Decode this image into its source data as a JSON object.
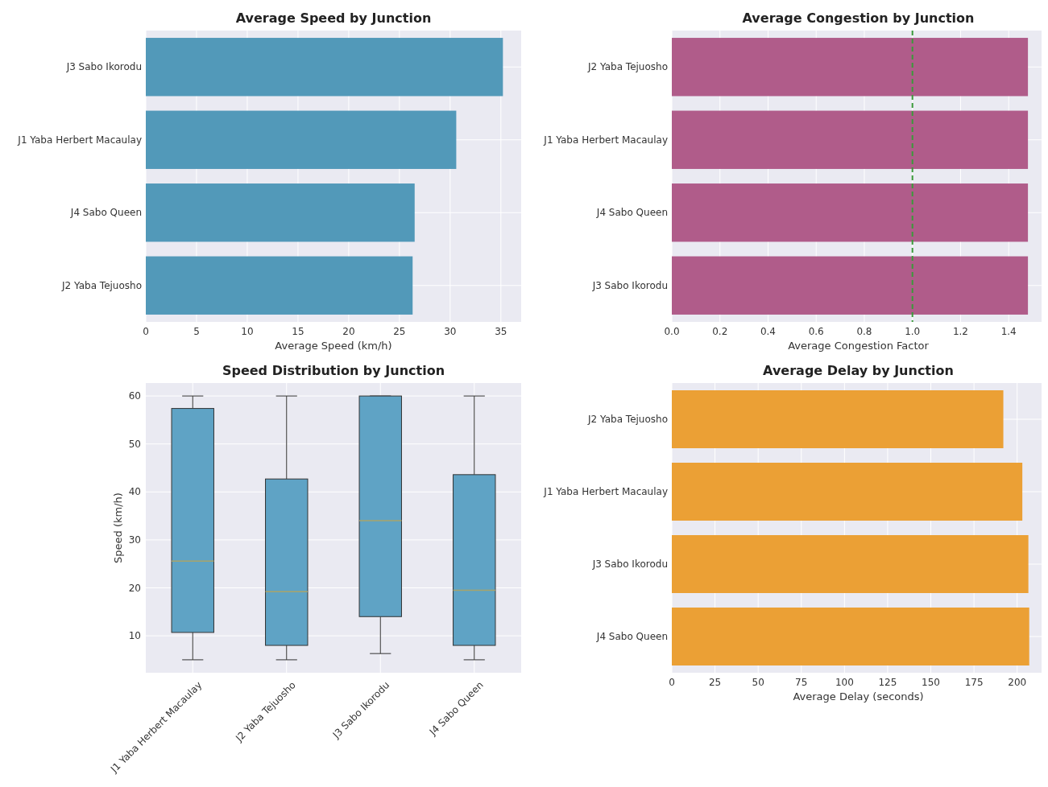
{
  "chart_data": [
    {
      "type": "bar",
      "orientation": "horizontal",
      "title": "Average Speed by Junction",
      "xlabel": "Average Speed (km/h)",
      "categories": [
        "J3 Sabo Ikorodu",
        "J1 Yaba Herbert Macaulay",
        "J4 Sabo Queen",
        "J2 Yaba Tejuosho"
      ],
      "values": [
        35.2,
        30.6,
        26.5,
        26.3
      ],
      "color": "#5299b9",
      "xlim": [
        0,
        37
      ],
      "xticks": [
        0,
        5,
        10,
        15,
        20,
        25,
        30,
        35
      ],
      "grid": true
    },
    {
      "type": "bar",
      "orientation": "horizontal",
      "title": "Average Congestion by Junction",
      "xlabel": "Average Congestion Factor",
      "categories": [
        "J2 Yaba Tejuosho",
        "J1 Yaba Herbert Macaulay",
        "J4 Sabo Queen",
        "J3 Sabo Ikorodu"
      ],
      "values": [
        1.48,
        1.48,
        1.48,
        1.48
      ],
      "color": "#b05c8a",
      "xlim": [
        0,
        1.55
      ],
      "xticks": [
        {
          "value": 0,
          "label": "0.0"
        },
        0.2,
        0.4,
        0.6,
        0.8,
        {
          "value": 1,
          "label": "1.0"
        },
        1.2,
        1.4
      ],
      "grid": true,
      "ref_lines": [
        {
          "axis": "x",
          "value": 1,
          "color": "#3a9a3a",
          "line_style": "dashed"
        }
      ]
    },
    {
      "type": "box",
      "title": "Speed Distribution by Junction",
      "ylabel": "Speed (km/h)",
      "categories": [
        "J1 Yaba Herbert Macaulay",
        "J2 Yaba Tejuosho",
        "J3 Sabo Ikorodu",
        "J4 Sabo Queen"
      ],
      "color": "#5fa3c5",
      "boxes": [
        {
          "low": 5,
          "q1": 10.7,
          "median": 25.6,
          "q3": 57.4,
          "high": 60
        },
        {
          "low": 5,
          "q1": 8,
          "median": 19.2,
          "q3": 42.7,
          "high": 60
        },
        {
          "low": 6.3,
          "q1": 14,
          "median": 34,
          "q3": 60,
          "high": 60
        },
        {
          "low": 5,
          "q1": 8,
          "median": 19.5,
          "q3": 43.6,
          "high": 60
        }
      ],
      "ylim": [
        2.3,
        62.7
      ],
      "yticks": [
        10,
        20,
        30,
        40,
        50,
        60
      ],
      "grid": true
    },
    {
      "type": "bar",
      "orientation": "horizontal",
      "title": "Average Delay by Junction",
      "xlabel": "Average Delay (seconds)",
      "categories": [
        "J2 Yaba Tejuosho",
        "J1 Yaba Herbert Macaulay",
        "J3 Sabo Ikorodu",
        "J4 Sabo Queen"
      ],
      "values": [
        192,
        203,
        206.5,
        207
      ],
      "color": "#eba035",
      "xlim": [
        0,
        216
      ],
      "xticks": [
        0,
        25,
        50,
        75,
        100,
        125,
        150,
        175,
        200
      ],
      "grid": true
    }
  ]
}
